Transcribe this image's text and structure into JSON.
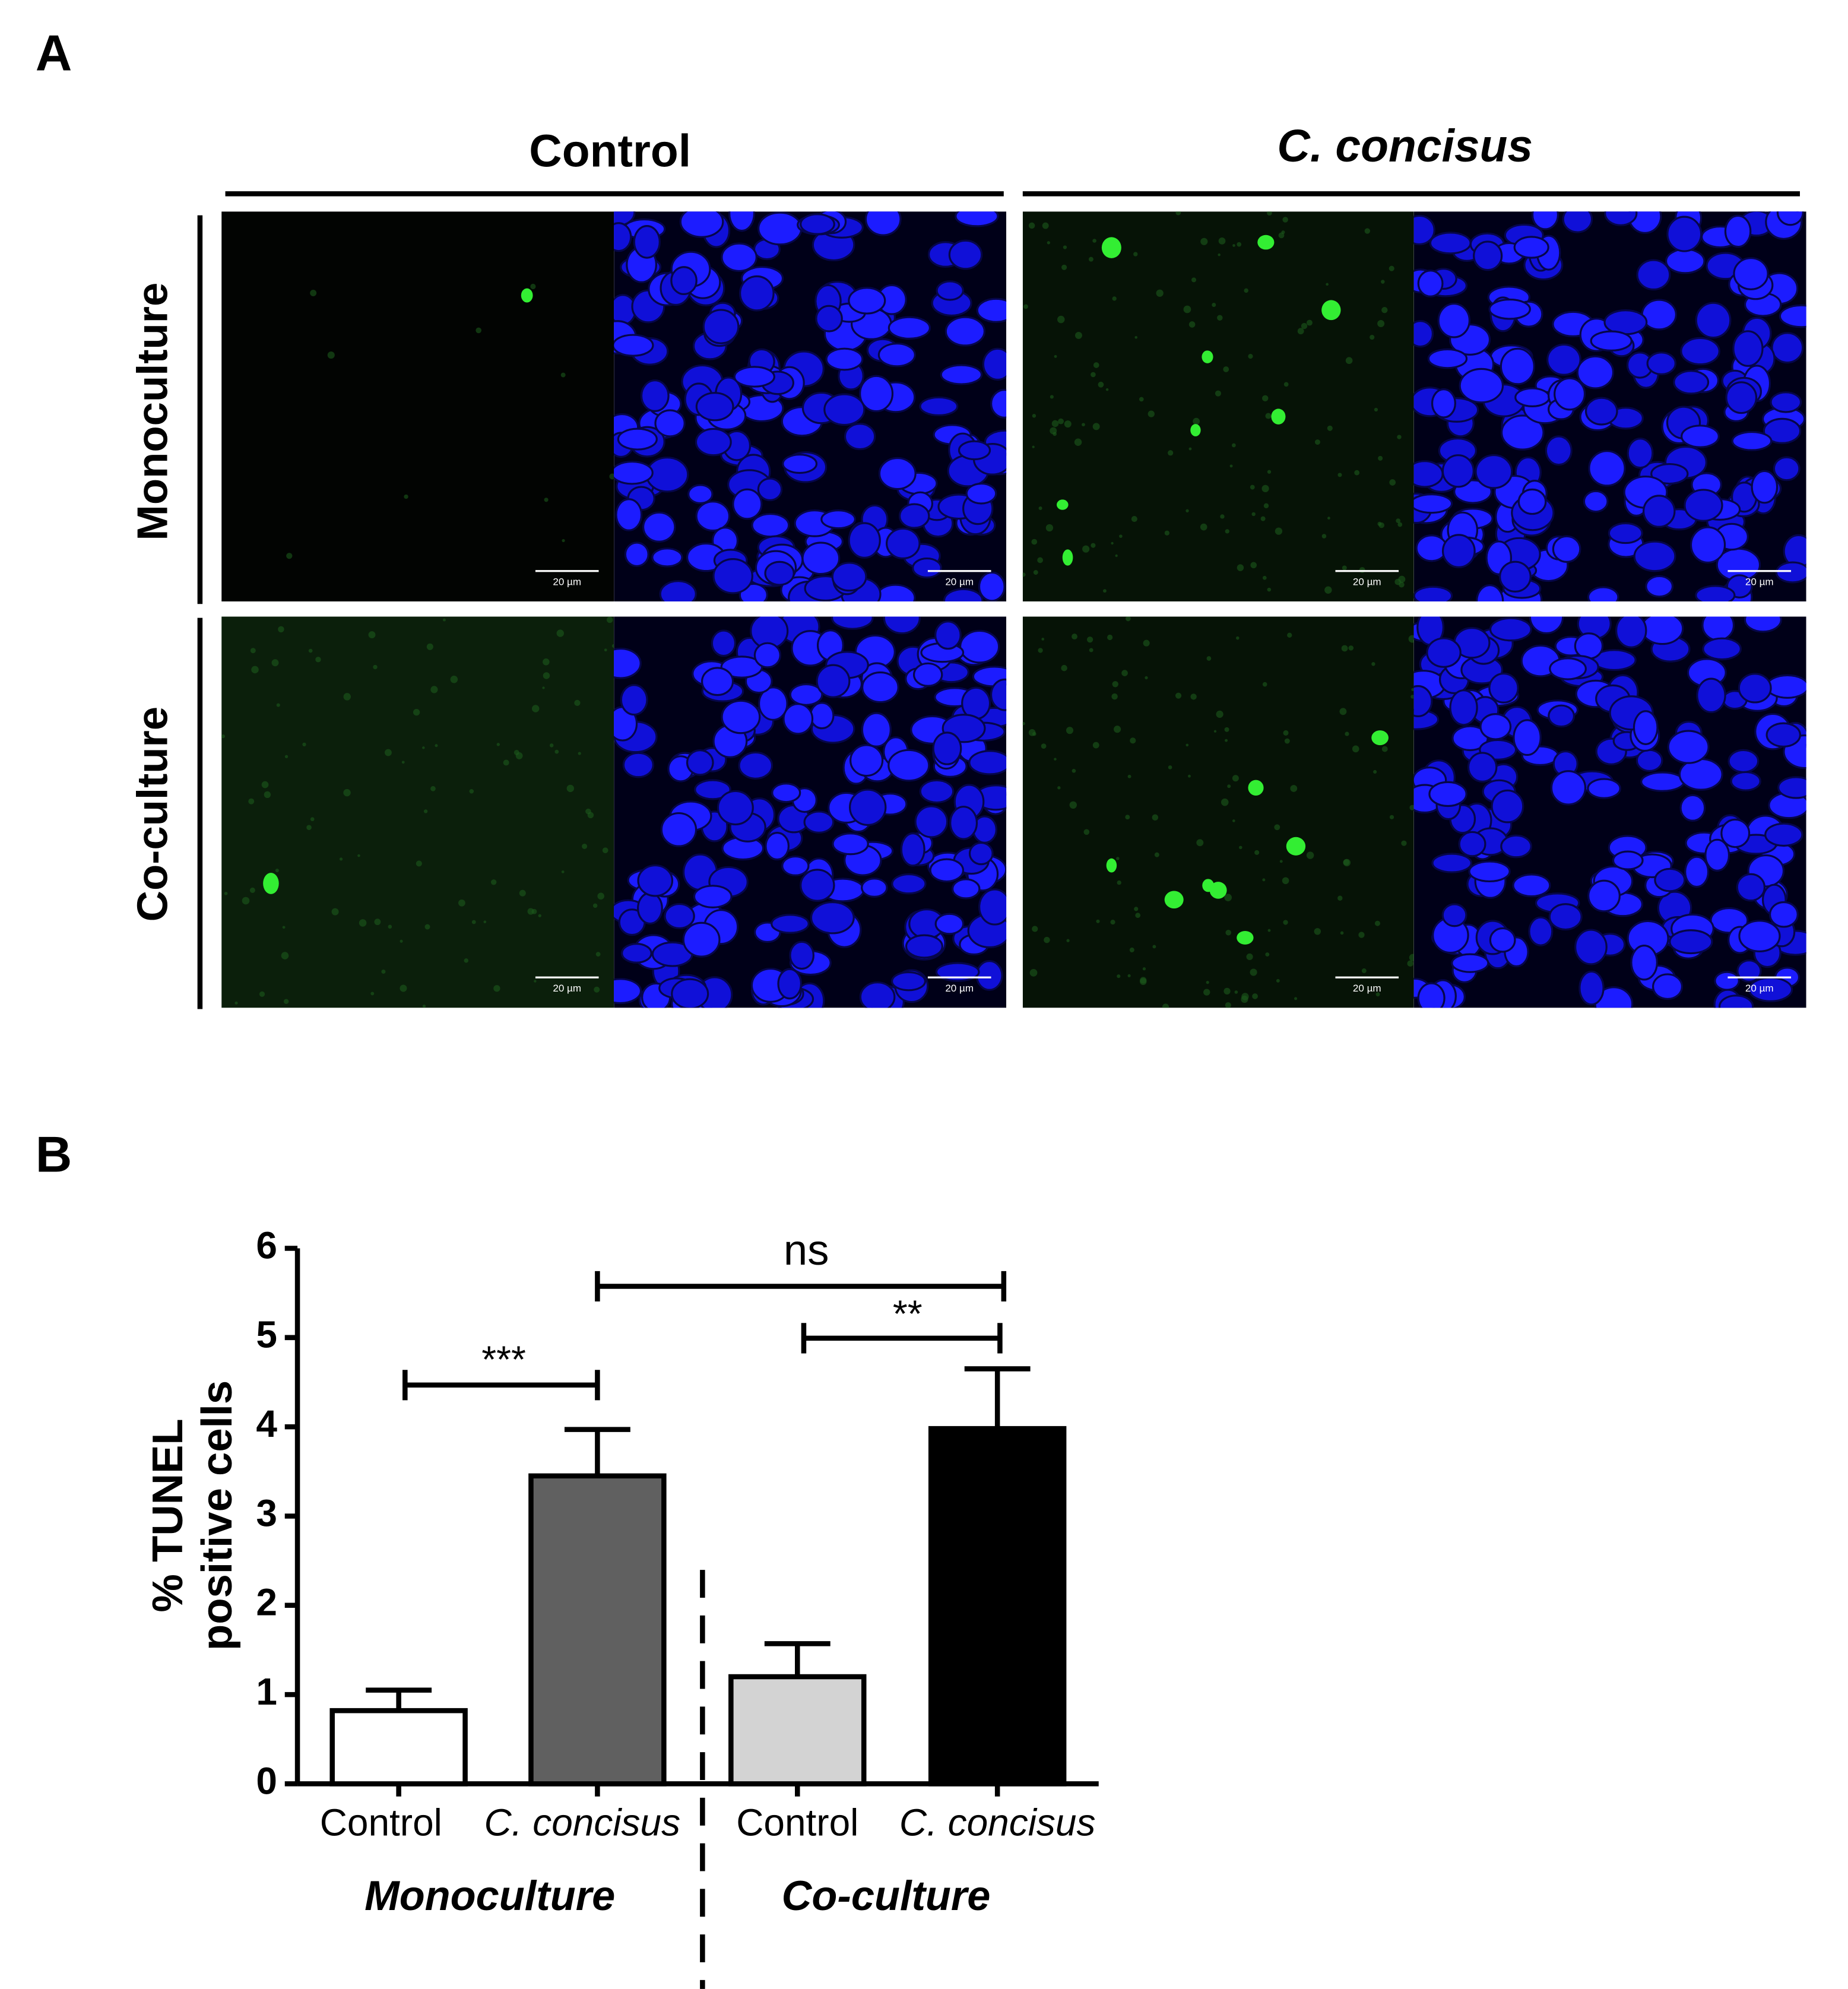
{
  "panel_a": {
    "label": "A",
    "columns": [
      "Control",
      "C. concisus"
    ],
    "rows": [
      "Monoculture",
      "Co-culture"
    ],
    "scale_bar": "20 µm"
  },
  "chart_data": {
    "type": "bar",
    "panel_label": "B",
    "y_label": [
      "% TUNEL",
      "positive cells"
    ],
    "categories": [
      "Control",
      "C. concisus",
      "Control",
      "C. concisus"
    ],
    "groups": [
      "Monoculture",
      "Co-culture"
    ],
    "values": [
      0.82,
      3.45,
      1.2,
      3.98
    ],
    "errors": [
      0.23,
      0.52,
      0.37,
      0.67
    ],
    "colors": [
      "#ffffff",
      "#606060",
      "#d3d3d3",
      "#000000"
    ],
    "significance": [
      "***",
      "**",
      "ns"
    ],
    "ylim": [
      0,
      6
    ],
    "yticks": [
      0,
      1,
      2,
      3,
      4,
      5,
      6
    ]
  }
}
